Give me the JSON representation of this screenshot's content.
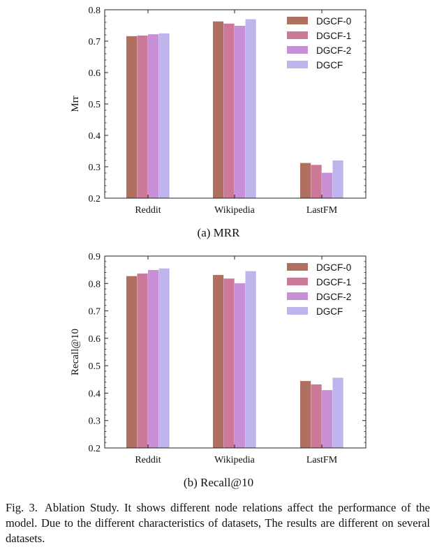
{
  "chart_data": [
    {
      "type": "bar",
      "title": "",
      "xlabel": "",
      "ylabel": "Mrr",
      "ylim": [
        0.2,
        0.8
      ],
      "yticks": [
        "0.2",
        "0.3",
        "0.4",
        "0.5",
        "0.6",
        "0.7",
        "0.8"
      ],
      "categories": [
        "Reddit",
        "Wikipedia",
        "LastFM"
      ],
      "series": [
        {
          "name": "DGCF-0",
          "values": [
            0.716,
            0.763,
            0.312
          ]
        },
        {
          "name": "DGCF-1",
          "values": [
            0.718,
            0.756,
            0.306
          ]
        },
        {
          "name": "DGCF-2",
          "values": [
            0.722,
            0.749,
            0.281
          ]
        },
        {
          "name": "DGCF",
          "values": [
            0.725,
            0.77,
            0.32
          ]
        }
      ],
      "legend_position": "top-right",
      "grid": false
    },
    {
      "type": "bar",
      "title": "",
      "xlabel": "",
      "ylabel": "Recall@10",
      "ylim": [
        0.2,
        0.9
      ],
      "yticks": [
        "0.2",
        "0.3",
        "0.4",
        "0.5",
        "0.6",
        "0.7",
        "0.8",
        "0.9"
      ],
      "categories": [
        "Reddit",
        "Wikipedia",
        "LastFM"
      ],
      "series": [
        {
          "name": "DGCF-0",
          "values": [
            0.827,
            0.831,
            0.444
          ]
        },
        {
          "name": "DGCF-1",
          "values": [
            0.836,
            0.818,
            0.432
          ]
        },
        {
          "name": "DGCF-2",
          "values": [
            0.849,
            0.801,
            0.411
          ]
        },
        {
          "name": "DGCF",
          "values": [
            0.855,
            0.845,
            0.456
          ]
        }
      ],
      "legend_position": "top-right",
      "grid": false
    }
  ],
  "series_colors": [
    "#b07060",
    "#cc7898",
    "#c890d6",
    "#c0b4ec"
  ],
  "captions": {
    "sub_a": "(a)  MRR",
    "sub_b": "(b)  Recall@10",
    "fig_label": "Fig. 3.",
    "fig_text": "Ablation Study. It shows different node relations affect the performance of the model. Due to the different characteristics of datasets, The results are different on several datasets."
  }
}
